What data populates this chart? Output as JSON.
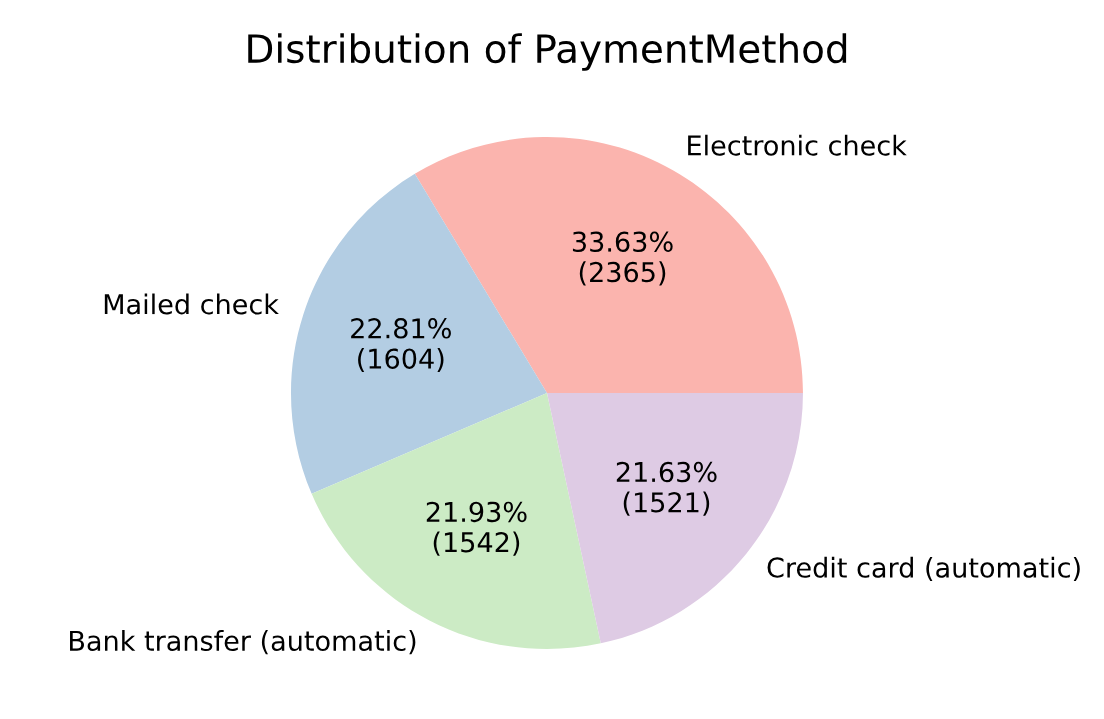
{
  "chart_data": {
    "type": "pie",
    "title": "Distribution of PaymentMethod",
    "categories": [
      "Electronic check",
      "Mailed check",
      "Bank transfer (automatic)",
      "Credit card (automatic)"
    ],
    "values": [
      2365,
      1604,
      1542,
      1521
    ],
    "colors": [
      "#fbb4ae",
      "#b3cde3",
      "#ccebc5",
      "#decbe4"
    ],
    "value_labels": [
      "33.63%\n(2365)",
      "22.81%\n(1604)",
      "21.93%\n(1542)",
      "21.63%\n(1521)"
    ],
    "legend": false
  }
}
